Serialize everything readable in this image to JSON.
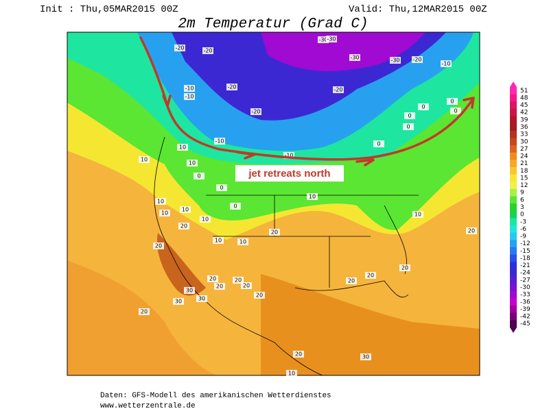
{
  "header": {
    "init": "Init : Thu,05MAR2015 00Z",
    "valid": "Valid: Thu,12MAR2015 00Z",
    "title": "2m Temperatur (Grad C)"
  },
  "annotation": "jet retreats north",
  "contour_labels": [
    -20,
    -20,
    -30,
    -30,
    -30,
    -30,
    -20,
    -10,
    -20,
    -10,
    -10,
    -20,
    -20,
    0,
    0,
    0,
    -10,
    -10,
    0,
    0,
    0,
    10,
    10,
    10,
    0,
    0,
    10,
    0,
    10,
    10,
    10,
    10,
    20,
    20,
    10,
    10,
    10,
    20,
    20,
    20,
    20,
    20,
    20,
    20,
    20,
    20,
    20,
    30,
    30,
    30,
    20,
    20,
    30,
    10
  ],
  "colorbar": {
    "ticks": [
      51,
      48,
      45,
      42,
      39,
      36,
      33,
      30,
      27,
      24,
      21,
      18,
      15,
      12,
      9,
      6,
      3,
      0,
      -3,
      -6,
      -9,
      -12,
      -15,
      -18,
      -21,
      -24,
      -27,
      -30,
      -33,
      -36,
      -39,
      -42,
      -45
    ],
    "colors": [
      "#ff28b4",
      "#f0198c",
      "#dc1464",
      "#c81446",
      "#b41428",
      "#a01e1e",
      "#b4321e",
      "#c8461e",
      "#dc641e",
      "#f08c1e",
      "#f5aa28",
      "#f5c832",
      "#fae632",
      "#f0f046",
      "#aaf046",
      "#5ae632",
      "#28d228",
      "#14d25a",
      "#1ee6a0",
      "#1ee6dc",
      "#28c8f0",
      "#28a0f0",
      "#2878f0",
      "#2850e6",
      "#2832dc",
      "#3c28d2",
      "#5a1ed2",
      "#7814d2",
      "#a00ad2",
      "#c800d2",
      "#a000a0",
      "#780078",
      "#500050"
    ]
  },
  "footer": {
    "source": "Daten: GFS-Modell des amerikanischen Wetterdienstes",
    "url": "www.wetterzentrale.de"
  }
}
